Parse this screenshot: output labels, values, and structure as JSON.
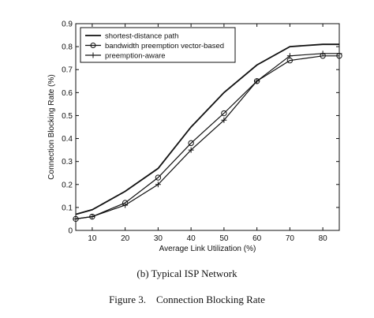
{
  "chart_data": {
    "type": "line",
    "xlabel": "Average Link Utilization (%)",
    "ylabel": "Connection Blocking Rate (%)",
    "xlim": [
      5,
      85
    ],
    "ylim": [
      0,
      0.9
    ],
    "xticks": [
      10,
      20,
      30,
      40,
      50,
      60,
      70,
      80
    ],
    "yticks": [
      0,
      0.1,
      0.2,
      0.3,
      0.4,
      0.5,
      0.6,
      0.7,
      0.8,
      0.9
    ],
    "x": [
      5,
      10,
      20,
      30,
      40,
      50,
      60,
      70,
      80,
      85
    ],
    "grid": false,
    "legend_position": "top-left",
    "series": [
      {
        "name": "shortest-distance path",
        "marker": "none",
        "values": [
          0.07,
          0.09,
          0.17,
          0.27,
          0.45,
          0.6,
          0.72,
          0.8,
          0.81,
          0.81
        ]
      },
      {
        "name": "bandwidth preemption vector-based",
        "marker": "circle",
        "values": [
          0.05,
          0.06,
          0.12,
          0.23,
          0.38,
          0.51,
          0.65,
          0.74,
          0.76,
          0.76
        ]
      },
      {
        "name": "preemption-aware",
        "marker": "plus",
        "values": [
          0.05,
          0.06,
          0.11,
          0.2,
          0.35,
          0.48,
          0.65,
          0.76,
          0.77,
          0.77
        ]
      }
    ]
  },
  "captions": {
    "subcaption": "(b) Typical ISP Network",
    "figure": "Figure 3.    Connection Blocking Rate"
  }
}
